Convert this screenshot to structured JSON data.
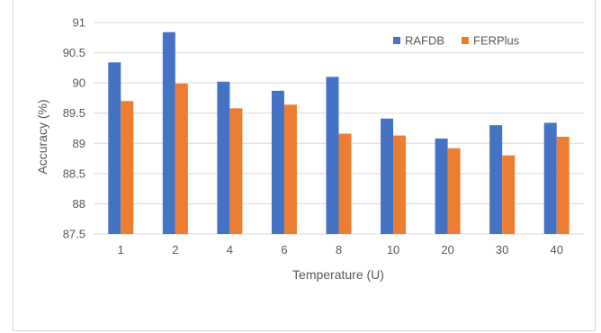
{
  "chart_data": {
    "type": "bar",
    "categories": [
      "1",
      "2",
      "4",
      "6",
      "8",
      "10",
      "20",
      "30",
      "40"
    ],
    "series": [
      {
        "name": "RAFDB",
        "color": "#4472C4",
        "values": [
          90.34,
          90.84,
          90.02,
          89.87,
          90.1,
          89.41,
          89.08,
          89.3,
          89.34
        ]
      },
      {
        "name": "FERPlus",
        "color": "#ED7D31",
        "values": [
          89.7,
          89.99,
          89.58,
          89.64,
          89.16,
          89.13,
          88.92,
          88.8,
          89.11
        ]
      }
    ],
    "title": "",
    "xlabel": "Temperature (U)",
    "ylabel": "Accuracy (%)",
    "ylim": [
      87.5,
      91
    ],
    "yticks": [
      "87.5",
      "88",
      "88.5",
      "89",
      "89.5",
      "90",
      "90.5",
      "91"
    ],
    "grid": true,
    "legend": "top-right",
    "gridColor": "#d9d9d9"
  }
}
